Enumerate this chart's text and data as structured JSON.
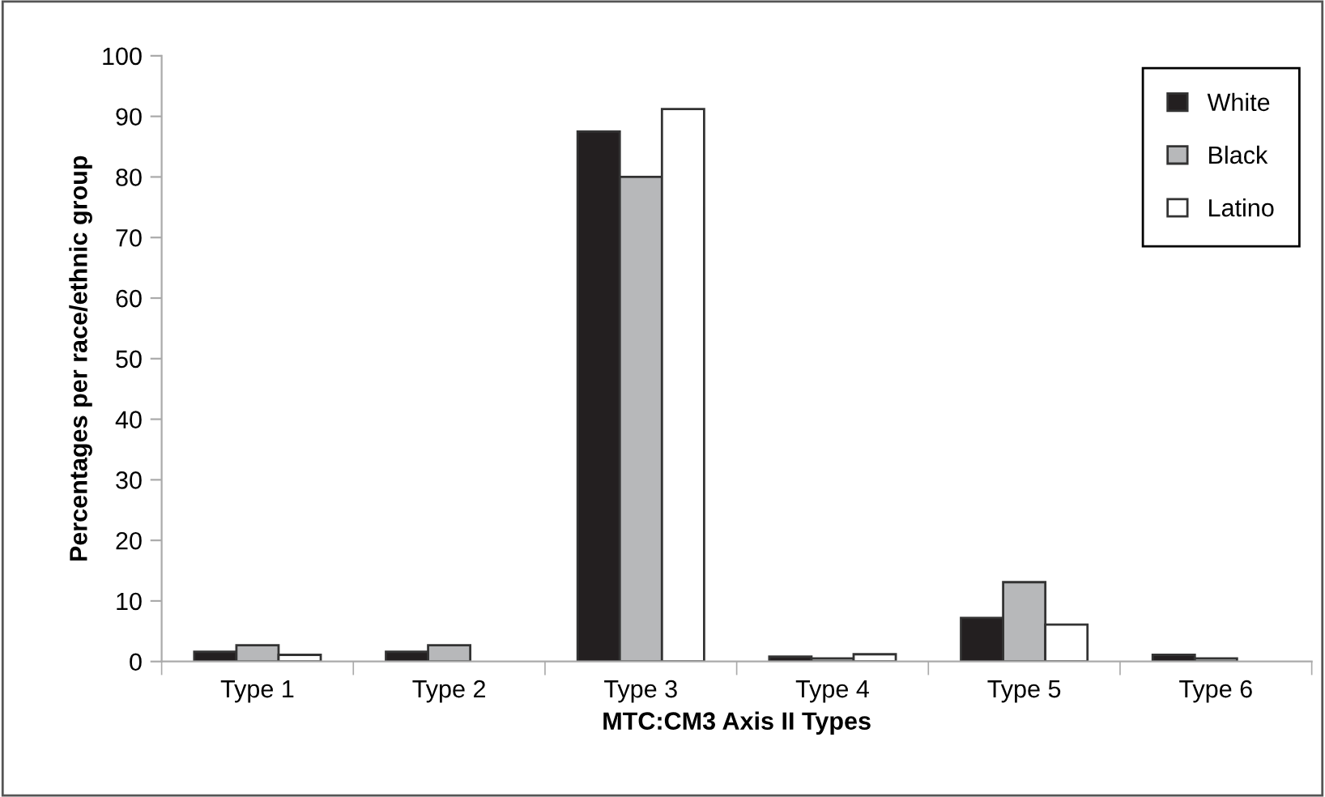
{
  "chart_data": {
    "type": "bar",
    "xlabel": "MTC:CM3 Axis II Types",
    "ylabel": "Percentages per race/ethnic group",
    "categories": [
      "Type 1",
      "Type 2",
      "Type 3",
      "Type 4",
      "Type 5",
      "Type 6"
    ],
    "series": [
      {
        "name": "White",
        "color": "#231f20",
        "values": [
          1.6,
          1.6,
          87.5,
          0.8,
          7.2,
          1.1
        ]
      },
      {
        "name": "Black",
        "color": "#b7b8ba",
        "values": [
          2.7,
          2.7,
          80,
          0.5,
          13.1,
          0.5
        ]
      },
      {
        "name": "Latino",
        "color": "#ffffff",
        "values": [
          1.1,
          null,
          91.2,
          1.2,
          6.1,
          null
        ]
      }
    ],
    "ylim": [
      0,
      100
    ],
    "yticks": [
      0,
      10,
      20,
      30,
      40,
      50,
      60,
      70,
      80,
      90,
      100
    ],
    "grid": false,
    "legend": "top right"
  }
}
